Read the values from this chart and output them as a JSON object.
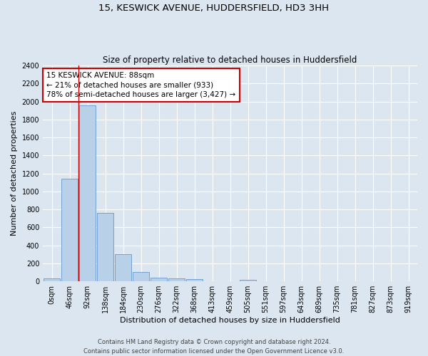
{
  "title1": "15, KESWICK AVENUE, HUDDERSFIELD, HD3 3HH",
  "title2": "Size of property relative to detached houses in Huddersfield",
  "xlabel": "Distribution of detached houses by size in Huddersfield",
  "ylabel": "Number of detached properties",
  "footnote1": "Contains HM Land Registry data © Crown copyright and database right 2024.",
  "footnote2": "Contains public sector information licensed under the Open Government Licence v3.0.",
  "bar_labels": [
    "0sqm",
    "46sqm",
    "92sqm",
    "138sqm",
    "184sqm",
    "230sqm",
    "276sqm",
    "322sqm",
    "368sqm",
    "413sqm",
    "459sqm",
    "505sqm",
    "551sqm",
    "597sqm",
    "643sqm",
    "689sqm",
    "735sqm",
    "781sqm",
    "827sqm",
    "873sqm",
    "919sqm"
  ],
  "bar_values": [
    35,
    1140,
    1960,
    760,
    300,
    105,
    45,
    35,
    22,
    0,
    0,
    20,
    0,
    0,
    0,
    0,
    0,
    0,
    0,
    0,
    0
  ],
  "bar_color": "#b8d0e8",
  "bar_edge_color": "#6699cc",
  "ylim": [
    0,
    2400
  ],
  "yticks": [
    0,
    200,
    400,
    600,
    800,
    1000,
    1200,
    1400,
    1600,
    1800,
    2000,
    2200,
    2400
  ],
  "annotation_title": "15 KESWICK AVENUE: 88sqm",
  "annotation_line1": "← 21% of detached houses are smaller (933)",
  "annotation_line2": "78% of semi-detached houses are larger (3,427) →",
  "vline_color": "#cc0000",
  "annotation_box_facecolor": "#ffffff",
  "annotation_box_edgecolor": "#cc0000",
  "bg_color": "#dce6f0",
  "plot_bg_color": "#dce6f0",
  "grid_color": "#ffffff",
  "title1_fontsize": 9.5,
  "title2_fontsize": 8.5,
  "ylabel_fontsize": 8,
  "xlabel_fontsize": 8,
  "tick_fontsize": 7,
  "footnote_fontsize": 6,
  "annot_fontsize": 7.5
}
